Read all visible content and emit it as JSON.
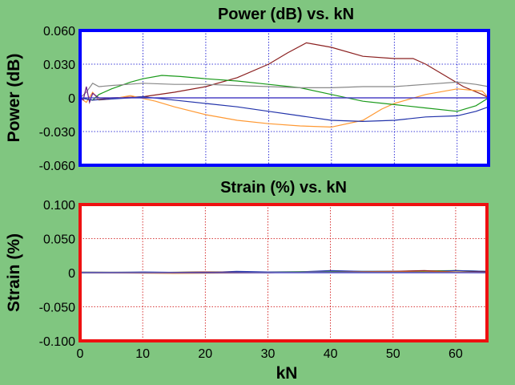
{
  "chart_data": [
    {
      "type": "line",
      "title": "Power (dB) vs. kN",
      "xlabel": "",
      "ylabel": "Power (dB)",
      "xlim": [
        0,
        65
      ],
      "ylim": [
        -0.06,
        0.06
      ],
      "yticks": [
        "0.060",
        "0.030",
        "0",
        "-0.030",
        "-0.060"
      ],
      "ytick_values": [
        0.06,
        0.03,
        0,
        -0.03,
        -0.06
      ],
      "xticks": [],
      "grid": true,
      "frame_color": "#0000ff",
      "grid_color": "#0000cc",
      "series": [
        {
          "color": "#8b2020",
          "x": [
            0,
            2,
            5,
            10,
            15,
            20,
            25,
            30,
            33,
            36,
            40,
            45,
            50,
            53,
            55,
            58,
            61,
            64,
            65
          ],
          "y": [
            0,
            -0.002,
            0,
            0.001,
            0.005,
            0.01,
            0.018,
            0.03,
            0.04,
            0.049,
            0.045,
            0.037,
            0.035,
            0.035,
            0.03,
            0.02,
            0.01,
            0.003,
            0
          ]
        },
        {
          "color": "#ff9933",
          "x": [
            0,
            1,
            2,
            3,
            5,
            8,
            12,
            15,
            20,
            25,
            30,
            35,
            40,
            45,
            48,
            50,
            55,
            60,
            64,
            65
          ],
          "y": [
            0,
            -0.004,
            0.005,
            -0.002,
            -0.001,
            0.002,
            -0.003,
            -0.008,
            -0.015,
            -0.02,
            -0.023,
            -0.025,
            -0.026,
            -0.02,
            -0.01,
            -0.005,
            0.003,
            0.008,
            0.006,
            0
          ]
        },
        {
          "color": "#1a9a1a",
          "x": [
            0,
            2,
            3,
            5,
            8,
            10,
            13,
            16,
            20,
            25,
            30,
            35,
            40,
            45,
            50,
            55,
            60,
            63,
            65
          ],
          "y": [
            0,
            -0.002,
            0.003,
            0.008,
            0.014,
            0.017,
            0.02,
            0.019,
            0.017,
            0.015,
            0.012,
            0.009,
            0.003,
            -0.003,
            -0.006,
            -0.009,
            -0.012,
            -0.007,
            0
          ]
        },
        {
          "color": "#888888",
          "x": [
            0,
            1,
            2,
            3,
            5,
            10,
            15,
            20,
            25,
            30,
            35,
            40,
            45,
            50,
            55,
            60,
            63,
            65
          ],
          "y": [
            0,
            0.005,
            0.013,
            0.01,
            0.011,
            0.013,
            0.012,
            0.012,
            0.011,
            0.01,
            0.009,
            0.009,
            0.01,
            0.01,
            0.012,
            0.014,
            0.012,
            0.01
          ]
        },
        {
          "color": "#6a1a8a",
          "x": [
            0,
            0.5,
            1,
            1.5,
            2,
            3,
            5,
            10,
            20,
            30,
            40,
            50,
            60,
            65
          ],
          "y": [
            0,
            -0.002,
            0.01,
            -0.004,
            0.004,
            0,
            0,
            0,
            0,
            0,
            0,
            0,
            0,
            0
          ]
        },
        {
          "color": "#2233aa",
          "x": [
            0,
            2,
            5,
            8,
            10,
            15,
            20,
            25,
            30,
            35,
            40,
            45,
            50,
            55,
            60,
            63,
            65
          ],
          "y": [
            0,
            -0.002,
            -0.001,
            0,
            0.001,
            -0.002,
            -0.005,
            -0.008,
            -0.012,
            -0.016,
            -0.02,
            -0.021,
            -0.02,
            -0.017,
            -0.016,
            -0.012,
            -0.008
          ]
        },
        {
          "color": "#4040cc",
          "x": [
            0,
            65
          ],
          "y": [
            0,
            0
          ]
        }
      ]
    },
    {
      "type": "line",
      "title": "Strain (%) vs. kN",
      "xlabel": "kN",
      "ylabel": "Strain (%)",
      "xlim": [
        0,
        65
      ],
      "ylim": [
        -0.1,
        0.1
      ],
      "yticks": [
        "0.100",
        "0.050",
        "0",
        "-0.050",
        "-0.100"
      ],
      "ytick_values": [
        0.1,
        0.05,
        0,
        -0.05,
        -0.1
      ],
      "xticks": [
        "0",
        "10",
        "20",
        "30",
        "40",
        "50",
        "60"
      ],
      "xtick_values": [
        0,
        10,
        20,
        30,
        40,
        50,
        60
      ],
      "grid": true,
      "frame_color": "#ee1111",
      "grid_color": "#cc0000",
      "series": [
        {
          "color": "#1a9a1a",
          "x": [
            0,
            10,
            20,
            30,
            40,
            50,
            60,
            65
          ],
          "y": [
            0,
            0,
            0.001,
            0.001,
            0.002,
            0.002,
            0.003,
            0.002
          ]
        },
        {
          "color": "#2233aa",
          "x": [
            0,
            10,
            20,
            25,
            30,
            35,
            40,
            45,
            50,
            55,
            60,
            65
          ],
          "y": [
            0,
            0.001,
            0,
            0.002,
            0.001,
            0.001,
            0.003,
            0.002,
            0.002,
            0.001,
            0.003,
            0.002
          ]
        },
        {
          "color": "#8b2020",
          "x": [
            0,
            10,
            20,
            30,
            40,
            50,
            55,
            60,
            65
          ],
          "y": [
            0,
            0,
            0.001,
            0,
            0.001,
            0.002,
            0.003,
            0.001,
            0.001
          ]
        },
        {
          "color": "#ff9933",
          "x": [
            0,
            15,
            30,
            45,
            60,
            65
          ],
          "y": [
            0,
            -0.001,
            0,
            0.001,
            0.001,
            0
          ]
        },
        {
          "color": "#888888",
          "x": [
            0,
            20,
            40,
            65
          ],
          "y": [
            0.001,
            0,
            0.001,
            0
          ]
        },
        {
          "color": "#4040cc",
          "x": [
            0,
            65
          ],
          "y": [
            0,
            0
          ]
        }
      ]
    }
  ]
}
